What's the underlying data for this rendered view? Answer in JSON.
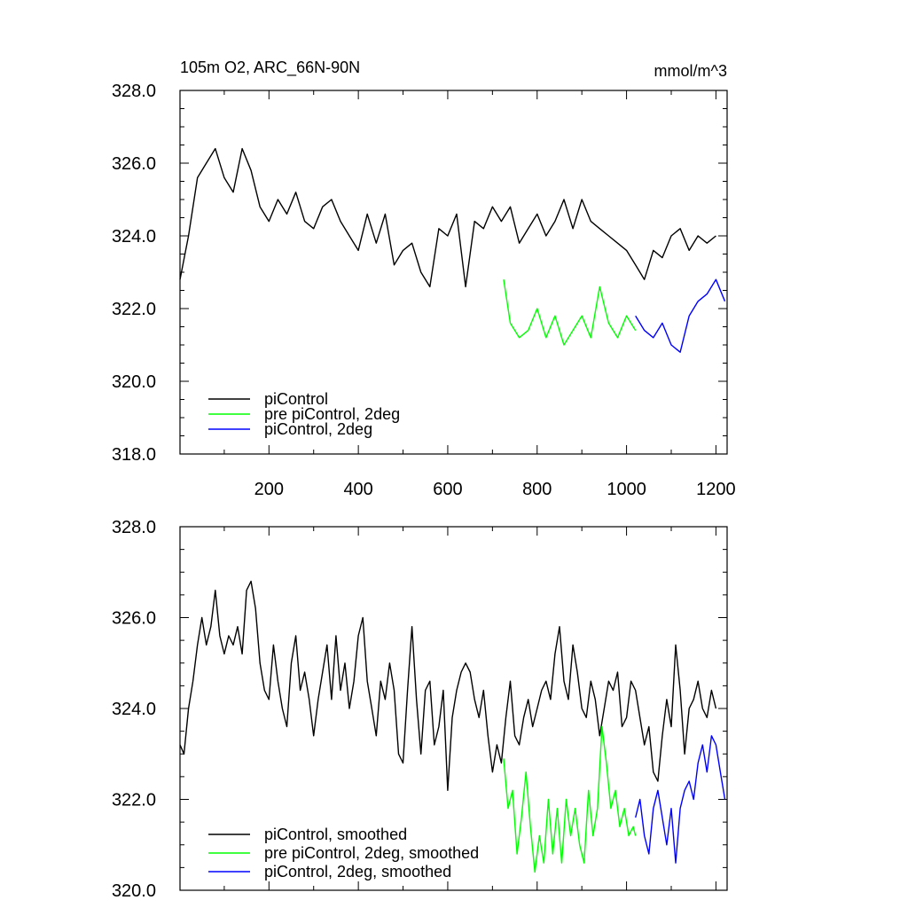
{
  "chart_data": [
    {
      "type": "line",
      "title": "105m O2, ARC_66N-90N",
      "units": "mmol/m^3",
      "xlabel": "",
      "ylabel": "",
      "xlim": [
        1,
        1225
      ],
      "ylim": [
        318,
        328
      ],
      "xticks": [
        200,
        400,
        600,
        800,
        1000,
        1200
      ],
      "xtick_labels": [
        "200",
        "400",
        "600",
        "800",
        "1000",
        "1200"
      ],
      "yticks": [
        318,
        320,
        322,
        324,
        326,
        328
      ],
      "ytick_labels": [
        "318.0",
        "320.0",
        "322.0",
        "324.0",
        "326.0",
        "328.0"
      ],
      "legend_position": "bottom-left",
      "series": [
        {
          "name": "piControl",
          "color": "#000000",
          "x": [
            1,
            20,
            40,
            60,
            80,
            100,
            120,
            140,
            160,
            180,
            200,
            220,
            240,
            260,
            280,
            300,
            320,
            340,
            360,
            380,
            400,
            420,
            440,
            460,
            480,
            500,
            520,
            540,
            560,
            580,
            600,
            620,
            640,
            660,
            680,
            700,
            720,
            740,
            760,
            780,
            800,
            820,
            840,
            860,
            880,
            900,
            920,
            940,
            960,
            980,
            1000,
            1020,
            1040,
            1060,
            1080,
            1100,
            1120,
            1140,
            1160,
            1180,
            1200
          ],
          "values": [
            322.8,
            324.0,
            325.6,
            326.0,
            326.4,
            325.6,
            325.2,
            326.4,
            325.8,
            324.8,
            324.4,
            325.0,
            324.6,
            325.2,
            324.4,
            324.2,
            324.8,
            325.0,
            324.4,
            324.0,
            323.6,
            324.6,
            323.8,
            324.6,
            323.2,
            323.6,
            323.8,
            323.0,
            322.6,
            324.2,
            324.0,
            324.6,
            322.6,
            324.4,
            324.2,
            324.8,
            324.4,
            324.8,
            323.8,
            324.2,
            324.6,
            324.0,
            324.4,
            325.0,
            324.2,
            325.0,
            324.4,
            324.2,
            324.0,
            323.8,
            323.6,
            323.2,
            322.8,
            323.6,
            323.4,
            324.0,
            324.2,
            323.6,
            324.0,
            323.8,
            324.0
          ]
        },
        {
          "name": "pre piControl, 2deg",
          "color": "#00ff00",
          "x": [
            725,
            740,
            760,
            780,
            800,
            820,
            840,
            860,
            880,
            900,
            920,
            940,
            960,
            980,
            1000,
            1020
          ],
          "values": [
            322.8,
            321.6,
            321.2,
            321.4,
            322.0,
            321.2,
            321.8,
            321.0,
            321.4,
            321.8,
            321.2,
            322.6,
            321.6,
            321.2,
            321.8,
            321.4
          ]
        },
        {
          "name": "piControl, 2deg",
          "color": "#0000ff",
          "x": [
            1020,
            1040,
            1060,
            1080,
            1100,
            1120,
            1140,
            1160,
            1180,
            1200,
            1220
          ],
          "values": [
            321.8,
            321.4,
            321.2,
            321.6,
            321.0,
            320.8,
            321.8,
            322.2,
            322.4,
            322.8,
            322.2
          ]
        }
      ]
    },
    {
      "type": "line",
      "title": "",
      "xlabel": "",
      "ylabel": "",
      "xlim": [
        1,
        1225
      ],
      "ylim": [
        320,
        328
      ],
      "yticks": [
        320,
        322,
        324,
        326,
        328
      ],
      "ytick_labels": [
        "320.0",
        "322.0",
        "324.0",
        "326.0",
        "328.0"
      ],
      "legend_position": "bottom-left",
      "series": [
        {
          "name": "piControl, smoothed",
          "color": "#000000",
          "x": [
            1,
            10,
            20,
            30,
            40,
            50,
            60,
            70,
            80,
            90,
            100,
            110,
            120,
            130,
            140,
            150,
            160,
            170,
            180,
            190,
            200,
            210,
            220,
            230,
            240,
            250,
            260,
            270,
            280,
            290,
            300,
            310,
            320,
            330,
            340,
            350,
            360,
            370,
            380,
            390,
            400,
            410,
            420,
            430,
            440,
            450,
            460,
            470,
            480,
            490,
            500,
            510,
            520,
            530,
            540,
            550,
            560,
            570,
            580,
            590,
            600,
            610,
            620,
            630,
            640,
            650,
            660,
            670,
            680,
            690,
            700,
            710,
            720,
            730,
            740,
            750,
            760,
            770,
            780,
            790,
            800,
            810,
            820,
            830,
            840,
            850,
            860,
            870,
            880,
            890,
            900,
            910,
            920,
            930,
            940,
            950,
            960,
            970,
            980,
            990,
            1000,
            1010,
            1020,
            1030,
            1040,
            1050,
            1060,
            1070,
            1080,
            1090,
            1100,
            1110,
            1120,
            1130,
            1140,
            1150,
            1160,
            1170,
            1180,
            1190,
            1200
          ],
          "values": [
            323.2,
            323.0,
            324.0,
            324.6,
            325.4,
            326.0,
            325.4,
            325.8,
            326.6,
            325.6,
            325.2,
            325.6,
            325.4,
            325.8,
            325.2,
            326.6,
            326.8,
            326.2,
            325.0,
            324.4,
            324.2,
            325.4,
            324.6,
            324.0,
            323.6,
            325.0,
            325.6,
            324.4,
            324.8,
            324.2,
            323.4,
            324.2,
            324.8,
            325.4,
            324.2,
            325.6,
            324.4,
            325.0,
            324.0,
            324.6,
            325.6,
            326.0,
            324.6,
            324.0,
            323.4,
            324.6,
            324.2,
            325.0,
            324.4,
            323.0,
            322.8,
            324.4,
            325.8,
            324.2,
            323.0,
            324.4,
            324.6,
            323.2,
            323.6,
            324.4,
            322.2,
            323.8,
            324.4,
            324.8,
            325.0,
            324.8,
            324.2,
            323.8,
            324.4,
            323.4,
            322.6,
            323.2,
            322.8,
            323.8,
            324.6,
            323.4,
            323.2,
            323.8,
            324.2,
            323.6,
            324.0,
            324.4,
            324.6,
            324.2,
            325.2,
            325.8,
            324.6,
            324.2,
            325.4,
            324.8,
            324.0,
            323.8,
            324.6,
            324.2,
            323.4,
            324.0,
            324.6,
            324.4,
            324.8,
            323.6,
            323.8,
            324.6,
            324.4,
            323.8,
            323.2,
            323.6,
            322.6,
            322.4,
            323.4,
            324.2,
            323.6,
            325.4,
            324.4,
            323.0,
            324.0,
            324.2,
            324.6,
            324.0,
            323.8,
            324.4,
            324.0
          ]
        },
        {
          "name": "pre piControl, 2deg, smoothed",
          "color": "#00ff00",
          "x": [
            725,
            735,
            745,
            755,
            765,
            775,
            785,
            795,
            805,
            815,
            825,
            835,
            845,
            855,
            865,
            875,
            885,
            895,
            905,
            915,
            925,
            935,
            945,
            955,
            965,
            975,
            985,
            995,
            1005,
            1015,
            1020
          ],
          "values": [
            322.9,
            321.8,
            322.2,
            320.8,
            321.6,
            322.6,
            321.4,
            320.4,
            321.2,
            320.6,
            322.0,
            320.8,
            321.8,
            320.6,
            322.0,
            321.2,
            321.8,
            321.0,
            320.6,
            322.2,
            321.2,
            321.8,
            323.6,
            322.8,
            321.8,
            322.2,
            321.4,
            321.8,
            321.2,
            321.4,
            321.2
          ]
        },
        {
          "name": "piControl, 2deg, smoothed",
          "color": "#0000ff",
          "x": [
            1020,
            1030,
            1040,
            1050,
            1060,
            1070,
            1080,
            1090,
            1100,
            1110,
            1120,
            1130,
            1140,
            1150,
            1160,
            1170,
            1180,
            1190,
            1200,
            1210,
            1220
          ],
          "values": [
            321.6,
            322.0,
            321.2,
            320.8,
            321.8,
            322.2,
            321.6,
            321.0,
            321.8,
            320.6,
            321.8,
            322.2,
            322.4,
            322.0,
            322.8,
            323.2,
            322.6,
            323.4,
            323.2,
            322.6,
            322.0
          ]
        }
      ]
    }
  ]
}
